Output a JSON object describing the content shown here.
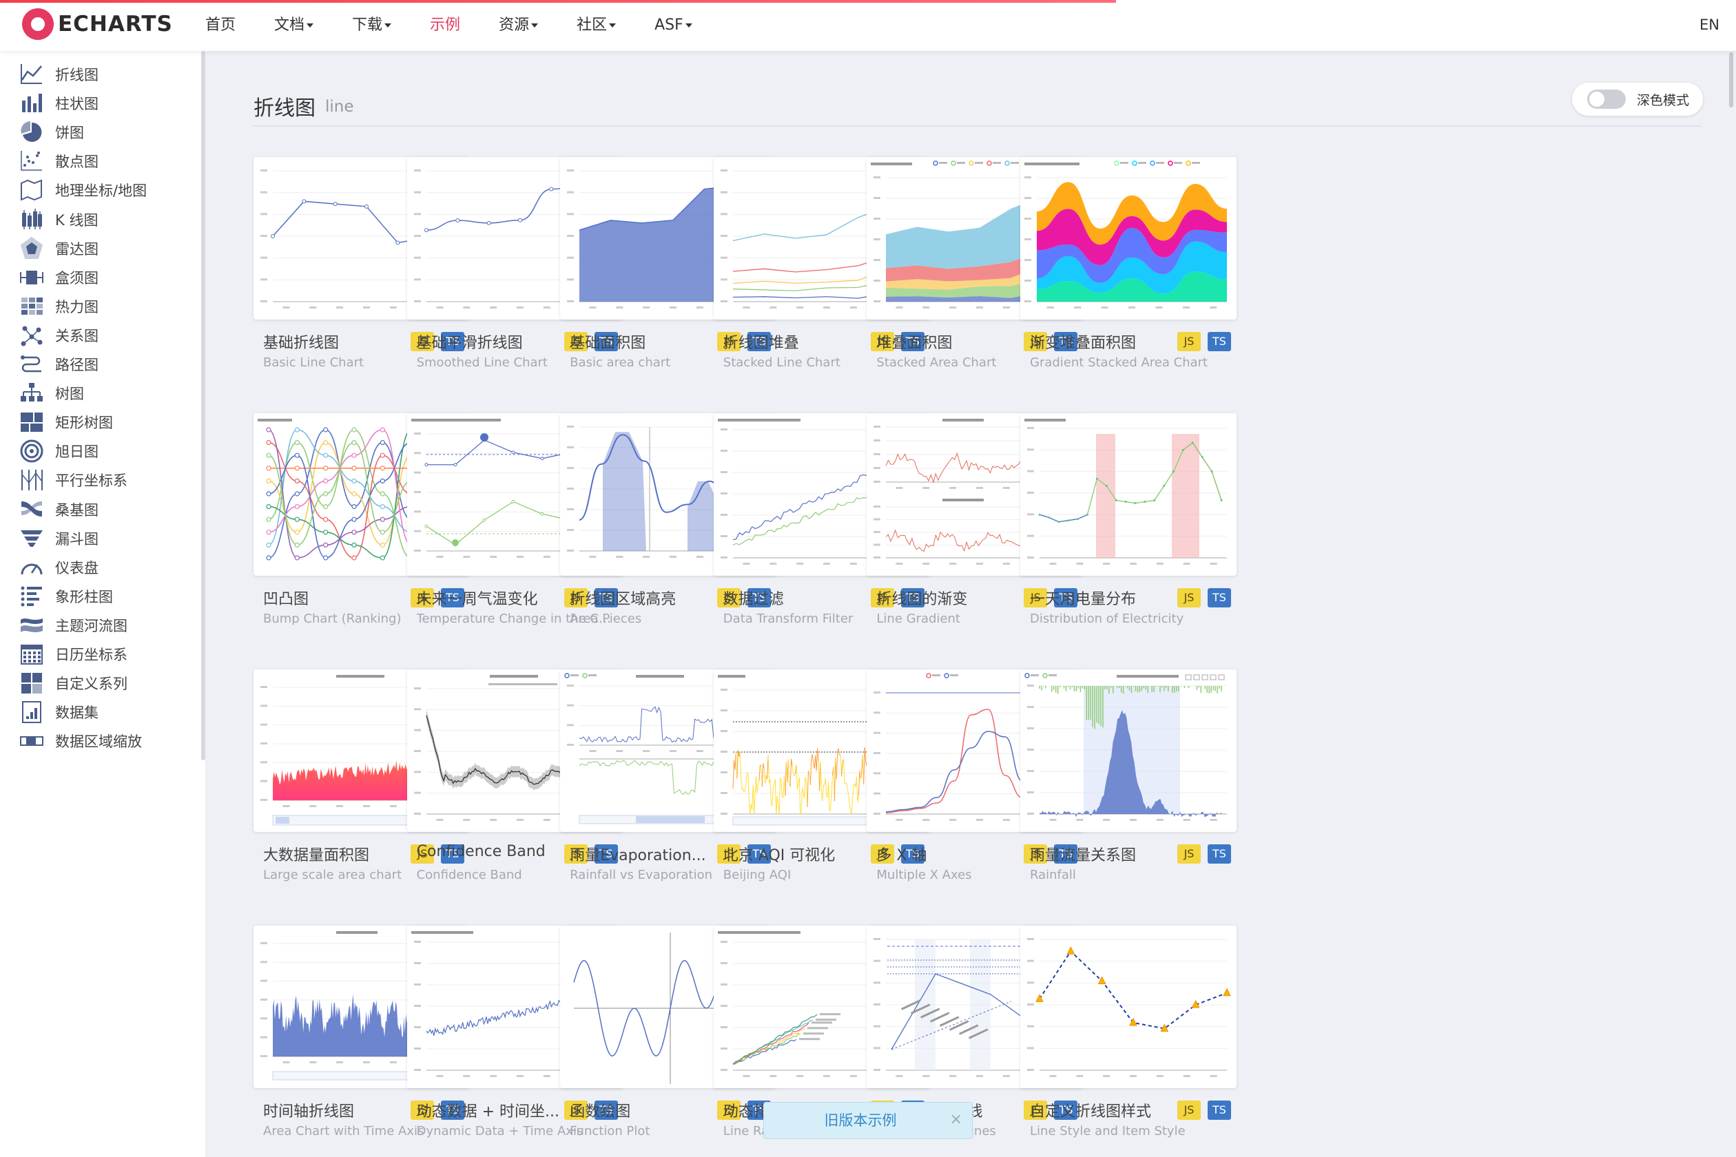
{
  "header": {
    "logo_text": "ECHARTS",
    "nav": [
      {
        "label": "首页",
        "caret": false,
        "active": false
      },
      {
        "label": "文档",
        "caret": true,
        "active": false
      },
      {
        "label": "下载",
        "caret": true,
        "active": false
      },
      {
        "label": "示例",
        "caret": false,
        "active": true
      },
      {
        "label": "资源",
        "caret": true,
        "active": false
      },
      {
        "label": "社区",
        "caret": true,
        "active": false
      },
      {
        "label": "ASF",
        "caret": true,
        "active": false
      }
    ],
    "lang": "EN",
    "accent": "#e43961"
  },
  "sidebar": {
    "items": [
      {
        "label": "折线图",
        "icon": "line-chart-icon"
      },
      {
        "label": "柱状图",
        "icon": "bar-chart-icon"
      },
      {
        "label": "饼图",
        "icon": "pie-chart-icon"
      },
      {
        "label": "散点图",
        "icon": "scatter-chart-icon"
      },
      {
        "label": "地理坐标/地图",
        "icon": "map-icon"
      },
      {
        "label": "K 线图",
        "icon": "candlestick-icon"
      },
      {
        "label": "雷达图",
        "icon": "radar-icon"
      },
      {
        "label": "盒须图",
        "icon": "boxplot-icon"
      },
      {
        "label": "热力图",
        "icon": "heatmap-icon"
      },
      {
        "label": "关系图",
        "icon": "graph-icon"
      },
      {
        "label": "路径图",
        "icon": "lines-icon"
      },
      {
        "label": "树图",
        "icon": "tree-icon"
      },
      {
        "label": "矩形树图",
        "icon": "treemap-icon"
      },
      {
        "label": "旭日图",
        "icon": "sunburst-icon"
      },
      {
        "label": "平行坐标系",
        "icon": "parallel-icon"
      },
      {
        "label": "桑基图",
        "icon": "sankey-icon"
      },
      {
        "label": "漏斗图",
        "icon": "funnel-icon"
      },
      {
        "label": "仪表盘",
        "icon": "gauge-icon"
      },
      {
        "label": "象形柱图",
        "icon": "pictorial-bar-icon"
      },
      {
        "label": "主题河流图",
        "icon": "theme-river-icon"
      },
      {
        "label": "日历坐标系",
        "icon": "calendar-icon"
      },
      {
        "label": "自定义系列",
        "icon": "custom-series-icon"
      },
      {
        "label": "数据集",
        "icon": "dataset-icon"
      },
      {
        "label": "数据区域缩放",
        "icon": "datazoom-icon"
      }
    ]
  },
  "section": {
    "title": "折线图",
    "subtitle": "line"
  },
  "dark_mode": {
    "label": "深色模式",
    "enabled": false
  },
  "badges": {
    "js": "JS",
    "ts": "TS"
  },
  "examples": [
    {
      "title": "基础折线图",
      "subtitle": "Basic Line Chart",
      "thumb": "basic-line"
    },
    {
      "title": "基础平滑折线图",
      "subtitle": "Smoothed Line Chart",
      "thumb": "smooth-line"
    },
    {
      "title": "基础面积图",
      "subtitle": "Basic area chart",
      "thumb": "basic-area"
    },
    {
      "title": "折线图堆叠",
      "subtitle": "Stacked Line Chart",
      "thumb": "stacked-line"
    },
    {
      "title": "堆叠面积图",
      "subtitle": "Stacked Area Chart",
      "thumb": "stacked-area"
    },
    {
      "title": "渐变堆叠面积图",
      "subtitle": "Gradient Stacked Area Chart",
      "thumb": "gradient-stacked"
    },
    {
      "title": "凹凸图",
      "subtitle": "Bump Chart (Ranking)",
      "thumb": "bump"
    },
    {
      "title": "未来一周气温变化",
      "subtitle": "Temperature Change in the Coming Week",
      "thumb": "temperature"
    },
    {
      "title": "折线图区域高亮",
      "subtitle": "Area Pieces",
      "thumb": "area-pieces"
    },
    {
      "title": "数据过滤",
      "subtitle": "Data Transform Filter",
      "thumb": "transform-filter"
    },
    {
      "title": "折线图的渐变",
      "subtitle": "Line Gradient",
      "thumb": "line-gradient"
    },
    {
      "title": "一天用电量分布",
      "subtitle": "Distribution of Electricity",
      "thumb": "electricity"
    },
    {
      "title": "大数据量面积图",
      "subtitle": "Large scale area chart",
      "thumb": "large-area"
    },
    {
      "title": "Confidence Band",
      "subtitle": "Confidence Band",
      "thumb": "confidence-band"
    },
    {
      "title": "雨量Evaporation...",
      "subtitle": "Rainfall vs Evaporation",
      "thumb": "rainfall-evaporation"
    },
    {
      "title": "北京 AQI 可视化",
      "subtitle": "Beijing AQI",
      "thumb": "beijing-aqi"
    },
    {
      "title": "多 X 轴",
      "subtitle": "Multiple X Axes",
      "thumb": "multiple-x"
    },
    {
      "title": "雨量流量关系图",
      "subtitle": "Rainfall",
      "thumb": "rainfall-flow"
    },
    {
      "title": "时间轴折线图",
      "subtitle": "Area Chart with Time Axis",
      "thumb": "time-axis-area"
    },
    {
      "title": "动态数据 + 时间坐...",
      "subtitle": "Dynamic Data + Time Axis",
      "thumb": "dynamic-time"
    },
    {
      "title": "函数绘图",
      "subtitle": "Function Plot",
      "thumb": "function-plot"
    },
    {
      "title": "动态排序折线图",
      "subtitle": "Line Race",
      "thumb": "line-race"
    },
    {
      "title": "折线图的标记线",
      "subtitle": "Line with Marklines",
      "thumb": "marklines"
    },
    {
      "title": "自定义折线图样式",
      "subtitle": "Line Style and Item Style",
      "thumb": "line-style"
    }
  ],
  "toast": {
    "label": "旧版本示例",
    "close": "×"
  }
}
